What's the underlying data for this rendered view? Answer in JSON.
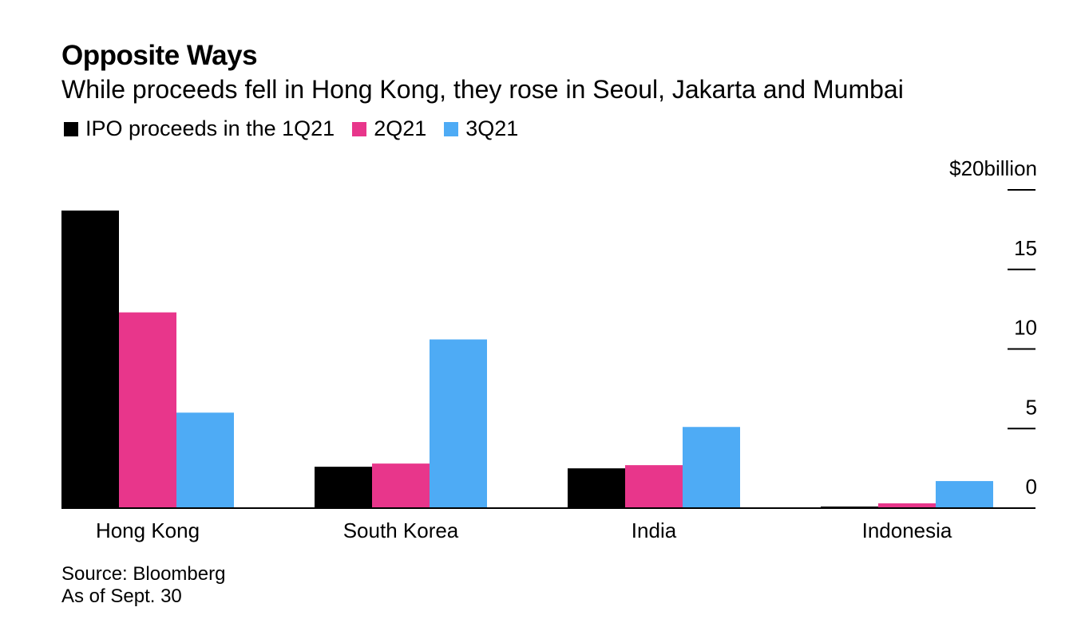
{
  "title": "Opposite Ways",
  "subtitle": "While proceeds fell in Hong Kong, they rose in Seoul, Jakarta and Mumbai",
  "footer": {
    "source": "Source: Bloomberg",
    "note": "As of Sept. 30"
  },
  "colors": {
    "series_1": "#000000",
    "series_2": "#e8368b",
    "series_3": "#4eabf5"
  },
  "chart_data": {
    "type": "bar",
    "categories": [
      "Hong Kong",
      "South Korea",
      "India",
      "Indonesia"
    ],
    "series": [
      {
        "name": "IPO proceeds in the 1Q21",
        "values": [
          18.7,
          2.6,
          2.5,
          0.1
        ]
      },
      {
        "name": "2Q21",
        "values": [
          12.3,
          2.8,
          2.7,
          0.3
        ]
      },
      {
        "name": "3Q21",
        "values": [
          6.0,
          10.6,
          5.1,
          1.7
        ]
      }
    ],
    "ylim": [
      0,
      20
    ],
    "yticks": [
      0,
      5,
      10,
      15,
      20
    ],
    "ytick_labels": [
      "0",
      "5",
      "10",
      "15",
      "$20billion"
    ],
    "y_axis_position": "right",
    "legend_position": "top-left",
    "grid": false
  }
}
